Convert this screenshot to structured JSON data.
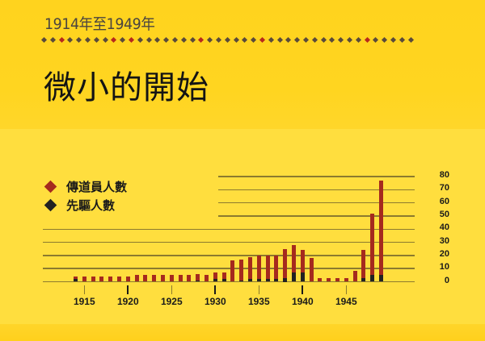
{
  "header": {
    "subtitle": "1914年至1949年",
    "title": "微小的開始",
    "divider": {
      "dot_count": 43,
      "red_indices": [
        2,
        8,
        10,
        18,
        25,
        37
      ],
      "dot_color": "#5A4A3A",
      "red_color": "#B8281C"
    }
  },
  "legend": {
    "items": [
      {
        "label": "傳道員人數",
        "color": "#A52A1E",
        "icon": "red-diamond-icon"
      },
      {
        "label": "先驅人數",
        "color": "#222222",
        "icon": "black-diamond-icon"
      }
    ]
  },
  "colors": {
    "background": "#FFDE3E",
    "header_band": "#FFD31E",
    "missionary": "#A52A1E",
    "pioneer": "#222222",
    "gridline": "#8C7A2E"
  },
  "chart_data": {
    "type": "bar",
    "stacked": "overlay",
    "title": "微小的開始",
    "subtitle": "1914年至1949年",
    "xlabel": "",
    "ylabel": "",
    "ylim": [
      0,
      80
    ],
    "y_ticks": [
      0,
      10,
      20,
      30,
      40,
      50,
      60,
      70,
      80
    ],
    "y_axis_position": "right",
    "grid": true,
    "legend_position": "top-left",
    "x_tick_labels": [
      "1915",
      "1920",
      "1925",
      "1930",
      "1935",
      "1940",
      "1945"
    ],
    "categories": [
      1914,
      1915,
      1916,
      1917,
      1918,
      1919,
      1920,
      1921,
      1922,
      1923,
      1924,
      1925,
      1926,
      1927,
      1928,
      1929,
      1930,
      1931,
      1932,
      1933,
      1934,
      1935,
      1936,
      1937,
      1938,
      1939,
      1940,
      1941,
      1942,
      1943,
      1944,
      1945,
      1946,
      1947,
      1948,
      1949
    ],
    "series": [
      {
        "name": "傳道員人數",
        "color": "#A52A1E",
        "values": [
          4,
          4,
          4,
          4,
          4,
          4,
          4,
          5,
          5,
          5,
          5,
          5,
          5,
          5,
          6,
          5,
          7,
          7,
          16,
          17,
          19,
          20,
          20,
          20,
          25,
          28,
          24,
          18,
          3,
          3,
          3,
          3,
          8,
          24,
          52,
          77
        ]
      },
      {
        "name": "先驅人數",
        "color": "#222222",
        "values": [
          2,
          0,
          0,
          0,
          0,
          0,
          0,
          0,
          0,
          0,
          0,
          0,
          0,
          0,
          1,
          0,
          2,
          2,
          0,
          1,
          2,
          2,
          2,
          2,
          3,
          7,
          7,
          0,
          0,
          0,
          0,
          0,
          0,
          3,
          5,
          5
        ]
      }
    ]
  }
}
